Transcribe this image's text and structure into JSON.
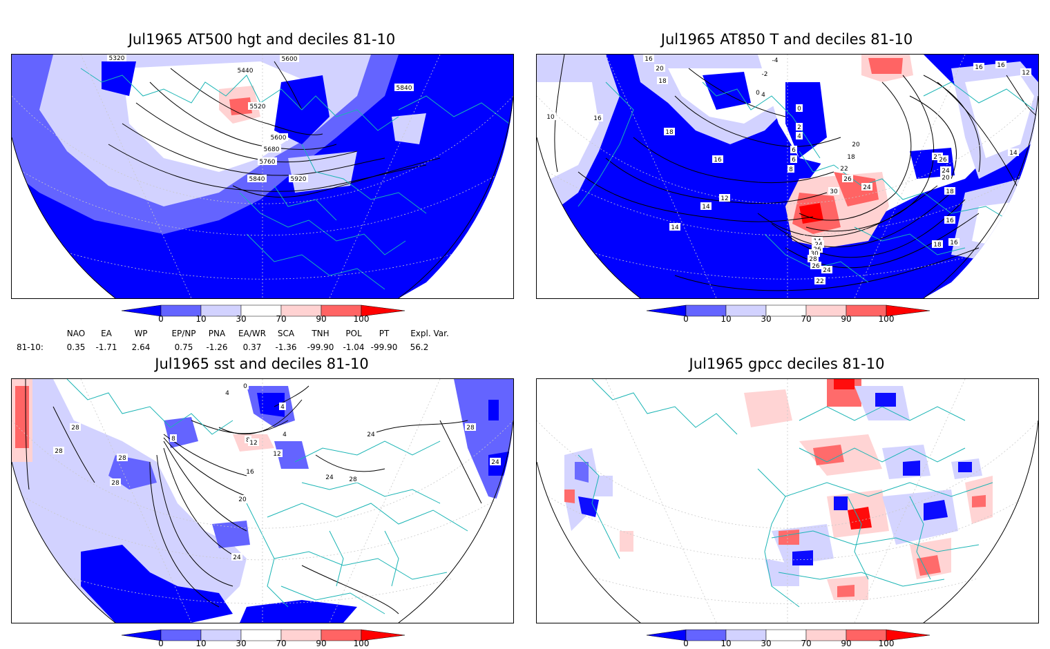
{
  "panels": [
    {
      "title": "Jul1965 AT500 hgt and deciles 81-10",
      "contour_labels": [
        "5320",
        "5600",
        "5440",
        "5520",
        "5840",
        "5600",
        "5680",
        "5760",
        "5840",
        "5920"
      ]
    },
    {
      "title": "Jul1965 AT850 T and deciles 81-10",
      "contour_labels": [
        "22",
        "20",
        "18",
        "-4",
        "-2",
        "0",
        "4",
        "0",
        "2",
        "4",
        "6",
        "6",
        "8",
        "10",
        "16",
        "18",
        "16",
        "14",
        "12",
        "14",
        "14",
        "16",
        "12",
        "14",
        "18",
        "20",
        "22",
        "26",
        "24",
        "30",
        "28",
        "26",
        "24",
        "20",
        "18",
        "16",
        "14",
        "24",
        "26",
        "30",
        "28",
        "26",
        "24",
        "22",
        "18",
        "16",
        "16",
        "16"
      ]
    },
    {
      "title": "Jul1965 sst and deciles 81-10",
      "contour_labels": [
        "0",
        "4",
        "4",
        "8",
        "12",
        "4",
        "8",
        "12",
        "16",
        "20",
        "24",
        "28",
        "28",
        "28",
        "28",
        "28",
        "24",
        "24",
        "24",
        "28"
      ]
    },
    {
      "title": "Jul1965 gpcc deciles 81-10",
      "contour_labels": []
    }
  ],
  "colorbar": {
    "ticks": [
      "0",
      "10",
      "30",
      "70",
      "90",
      "100"
    ],
    "colors": [
      "#0000ff",
      "#6464ff",
      "#d2d2ff",
      "#ffffff",
      "#ffd2d2",
      "#ff6464",
      "#ff0000"
    ]
  },
  "indices": {
    "header": [
      "NAO",
      "EA",
      "WP",
      "EP/NP",
      "PNA",
      "EA/WR",
      "SCA",
      "TNH",
      "POL",
      "PT",
      "Expl. Var."
    ],
    "row_label": "81-10:",
    "values": [
      "0.35",
      "-1.71",
      "2.64",
      "0.75",
      "-1.26",
      "0.37",
      "-1.36",
      "-99.90",
      "-1.04",
      "-99.90",
      "56.2"
    ]
  }
}
